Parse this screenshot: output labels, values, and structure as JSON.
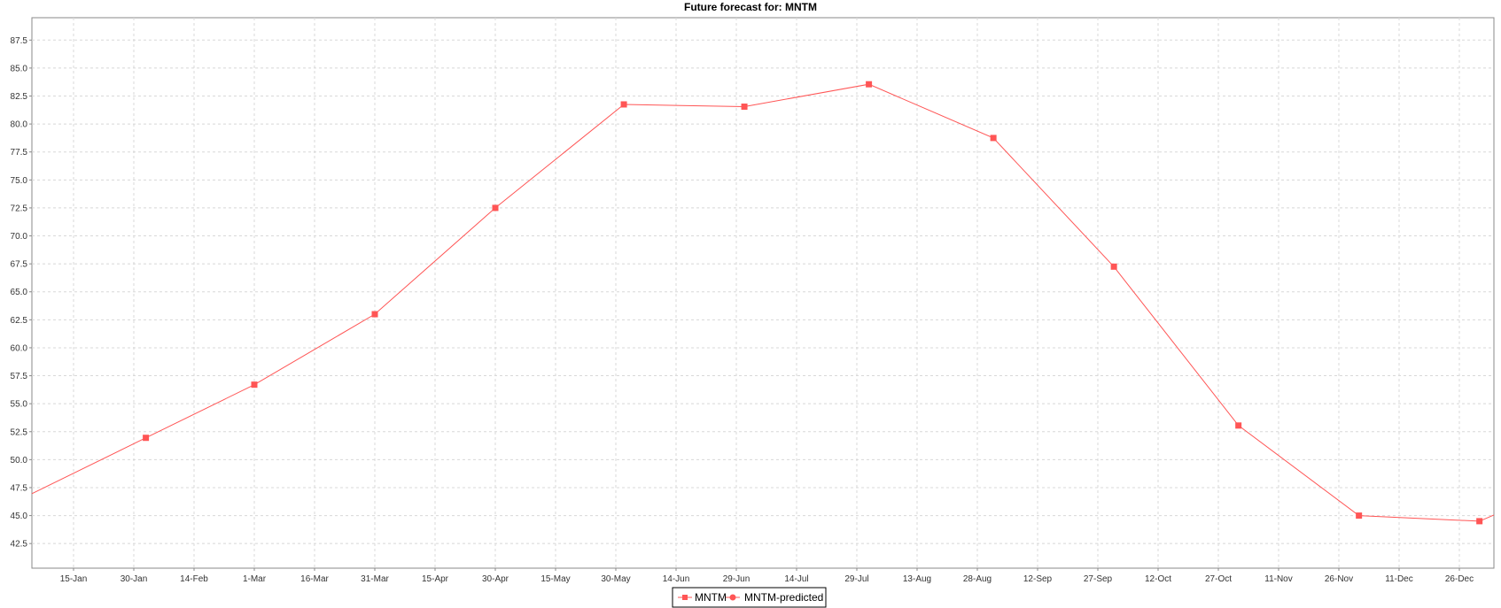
{
  "chart_data": {
    "type": "line",
    "title": "Future forecast for: MNTM",
    "xlabel": "",
    "ylabel": "",
    "ylim": [
      40.3,
      89.5
    ],
    "x_tick_labels": [
      "15-Jan",
      "30-Jan",
      "14-Feb",
      "1-Mar",
      "16-Mar",
      "31-Mar",
      "15-Apr",
      "30-Apr",
      "15-May",
      "30-May",
      "14-Jun",
      "29-Jun",
      "14-Jul",
      "29-Jul",
      "13-Aug",
      "28-Aug",
      "12-Sep",
      "27-Sep",
      "12-Oct",
      "27-Oct",
      "11-Nov",
      "26-Nov",
      "11-Dec",
      "26-Dec"
    ],
    "y_tick_labels": [
      "42.5",
      "45.0",
      "47.5",
      "50.0",
      "52.5",
      "55.0",
      "57.5",
      "60.0",
      "62.5",
      "65.0",
      "67.5",
      "70.0",
      "72.5",
      "75.0",
      "77.5",
      "80.0",
      "82.5",
      "85.0",
      "87.5"
    ],
    "grid": true,
    "legend_position": "bottom",
    "series": [
      {
        "name": "MNTM",
        "marker": "square",
        "color": "#ff5555",
        "points": [
          {
            "x": "2-Feb",
            "y": 51.95
          },
          {
            "x": "1-Mar",
            "y": 56.7
          },
          {
            "x": "31-Mar",
            "y": 63.0
          },
          {
            "x": "30-Apr",
            "y": 72.5
          },
          {
            "x": "1-Jun",
            "y": 81.75
          },
          {
            "x": "1-Jul",
            "y": 81.55
          },
          {
            "x": "1-Aug",
            "y": 83.55
          },
          {
            "x": "1-Sep",
            "y": 78.75
          },
          {
            "x": "1-Oct",
            "y": 67.25
          },
          {
            "x": "1-Nov",
            "y": 53.05
          },
          {
            "x": "1-Dec",
            "y": 45.0
          },
          {
            "x": "31-Dec",
            "y": 44.5
          }
        ]
      },
      {
        "name": "MNTM-predicted",
        "marker": "circle",
        "color": "#ff5555",
        "points": []
      }
    ]
  }
}
